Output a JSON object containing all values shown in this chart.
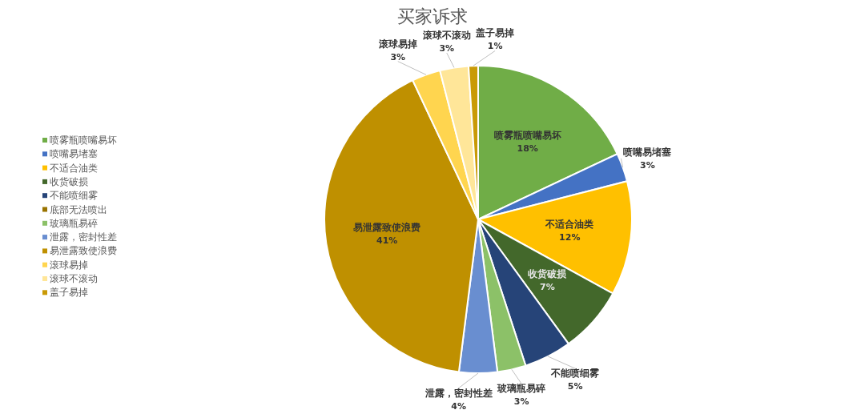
{
  "chart_data": {
    "type": "pie",
    "title": "买家诉求",
    "legend": "left",
    "categories": [
      "喷雾瓶喷嘴易坏",
      "喷嘴易堵塞",
      "不适合油类",
      "收货破损",
      "不能喷细雾",
      "底部无法喷出",
      "玻璃瓶易碎",
      "泄露，密封性差",
      "易泄露致使浪费",
      "滚球易掉",
      "滚球不滚动",
      "盖子易掉"
    ],
    "values": [
      18,
      3,
      12,
      7,
      5,
      0,
      3,
      4,
      41,
      3,
      3,
      1
    ],
    "colors": [
      "#70ad47",
      "#4472c4",
      "#ffc000",
      "#43682b",
      "#264478",
      "#997300",
      "#8cc168",
      "#698ed0",
      "#bf9000",
      "#ffd54f",
      "#ffe699",
      "#c99a06"
    ],
    "value_labels": [
      "18%",
      "3%",
      "12%",
      "7%",
      "5%",
      null,
      "3%",
      "4%",
      "41%",
      "3%",
      "3%",
      "1%"
    ]
  }
}
